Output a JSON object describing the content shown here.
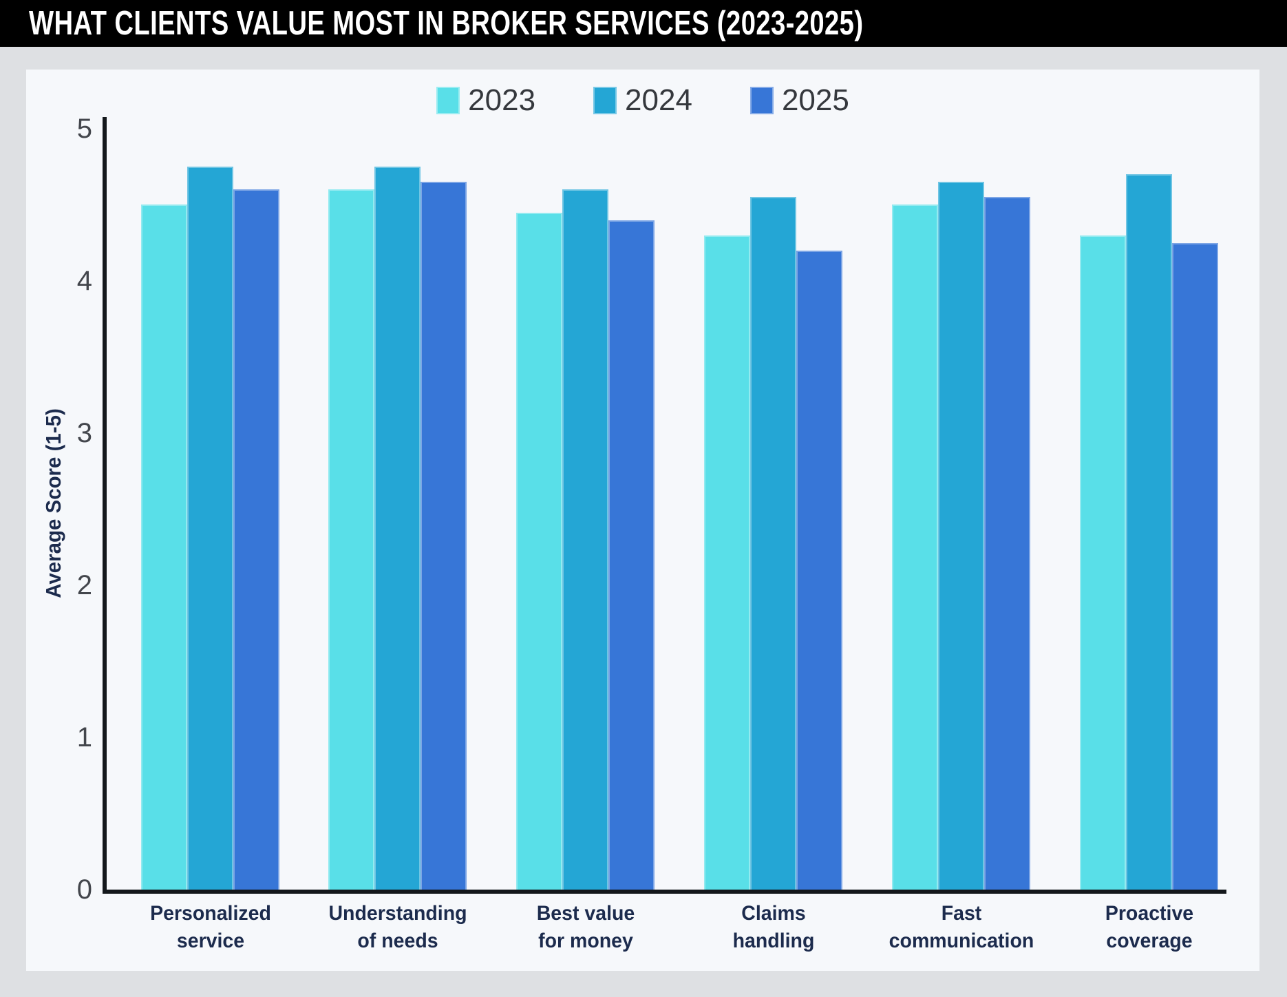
{
  "title_bar": {
    "title": "WHAT CLIENTS VALUE MOST IN BROKER SERVICES (2023-2025)"
  },
  "palette": {
    "background": "#DEE0E3",
    "title_bar_bg": "#000000",
    "title_text": "#FFFFFF",
    "panel": "#F6F8FB",
    "axis": "#14181C",
    "label_navy": "#1C2B4D",
    "tick_text": "#43464C",
    "legend_text": "#35383D"
  },
  "chart_data": {
    "type": "bar",
    "title": "WHAT CLIENTS VALUE MOST IN BROKER SERVICES (2023-2025)",
    "xlabel": "",
    "ylabel": "Average Score (1-5)",
    "ylim": [
      0,
      5
    ],
    "yticks": [
      0,
      1,
      2,
      3,
      4,
      5
    ],
    "grid": false,
    "legend_position": "top-center",
    "categories": [
      "Personalized service",
      "Understanding of needs",
      "Best value for money",
      "Claims handling",
      "Fast communication",
      "Proactive coverage"
    ],
    "category_labels": [
      [
        "Personalized",
        "service"
      ],
      [
        "Understanding",
        "of needs"
      ],
      [
        "Best value",
        "for money"
      ],
      [
        "Claims",
        "handling"
      ],
      [
        "Fast",
        "communication"
      ],
      [
        "Proactive",
        "coverage"
      ]
    ],
    "series": [
      {
        "name": "2023",
        "color": "#59DFE8",
        "values": [
          4.5,
          4.6,
          4.45,
          4.3,
          4.5,
          4.3
        ]
      },
      {
        "name": "2024",
        "color": "#24A6D5",
        "values": [
          4.75,
          4.75,
          4.6,
          4.55,
          4.65,
          4.7
        ]
      },
      {
        "name": "2025",
        "color": "#3776D7",
        "values": [
          4.6,
          4.65,
          4.4,
          4.2,
          4.55,
          4.25
        ]
      }
    ]
  }
}
